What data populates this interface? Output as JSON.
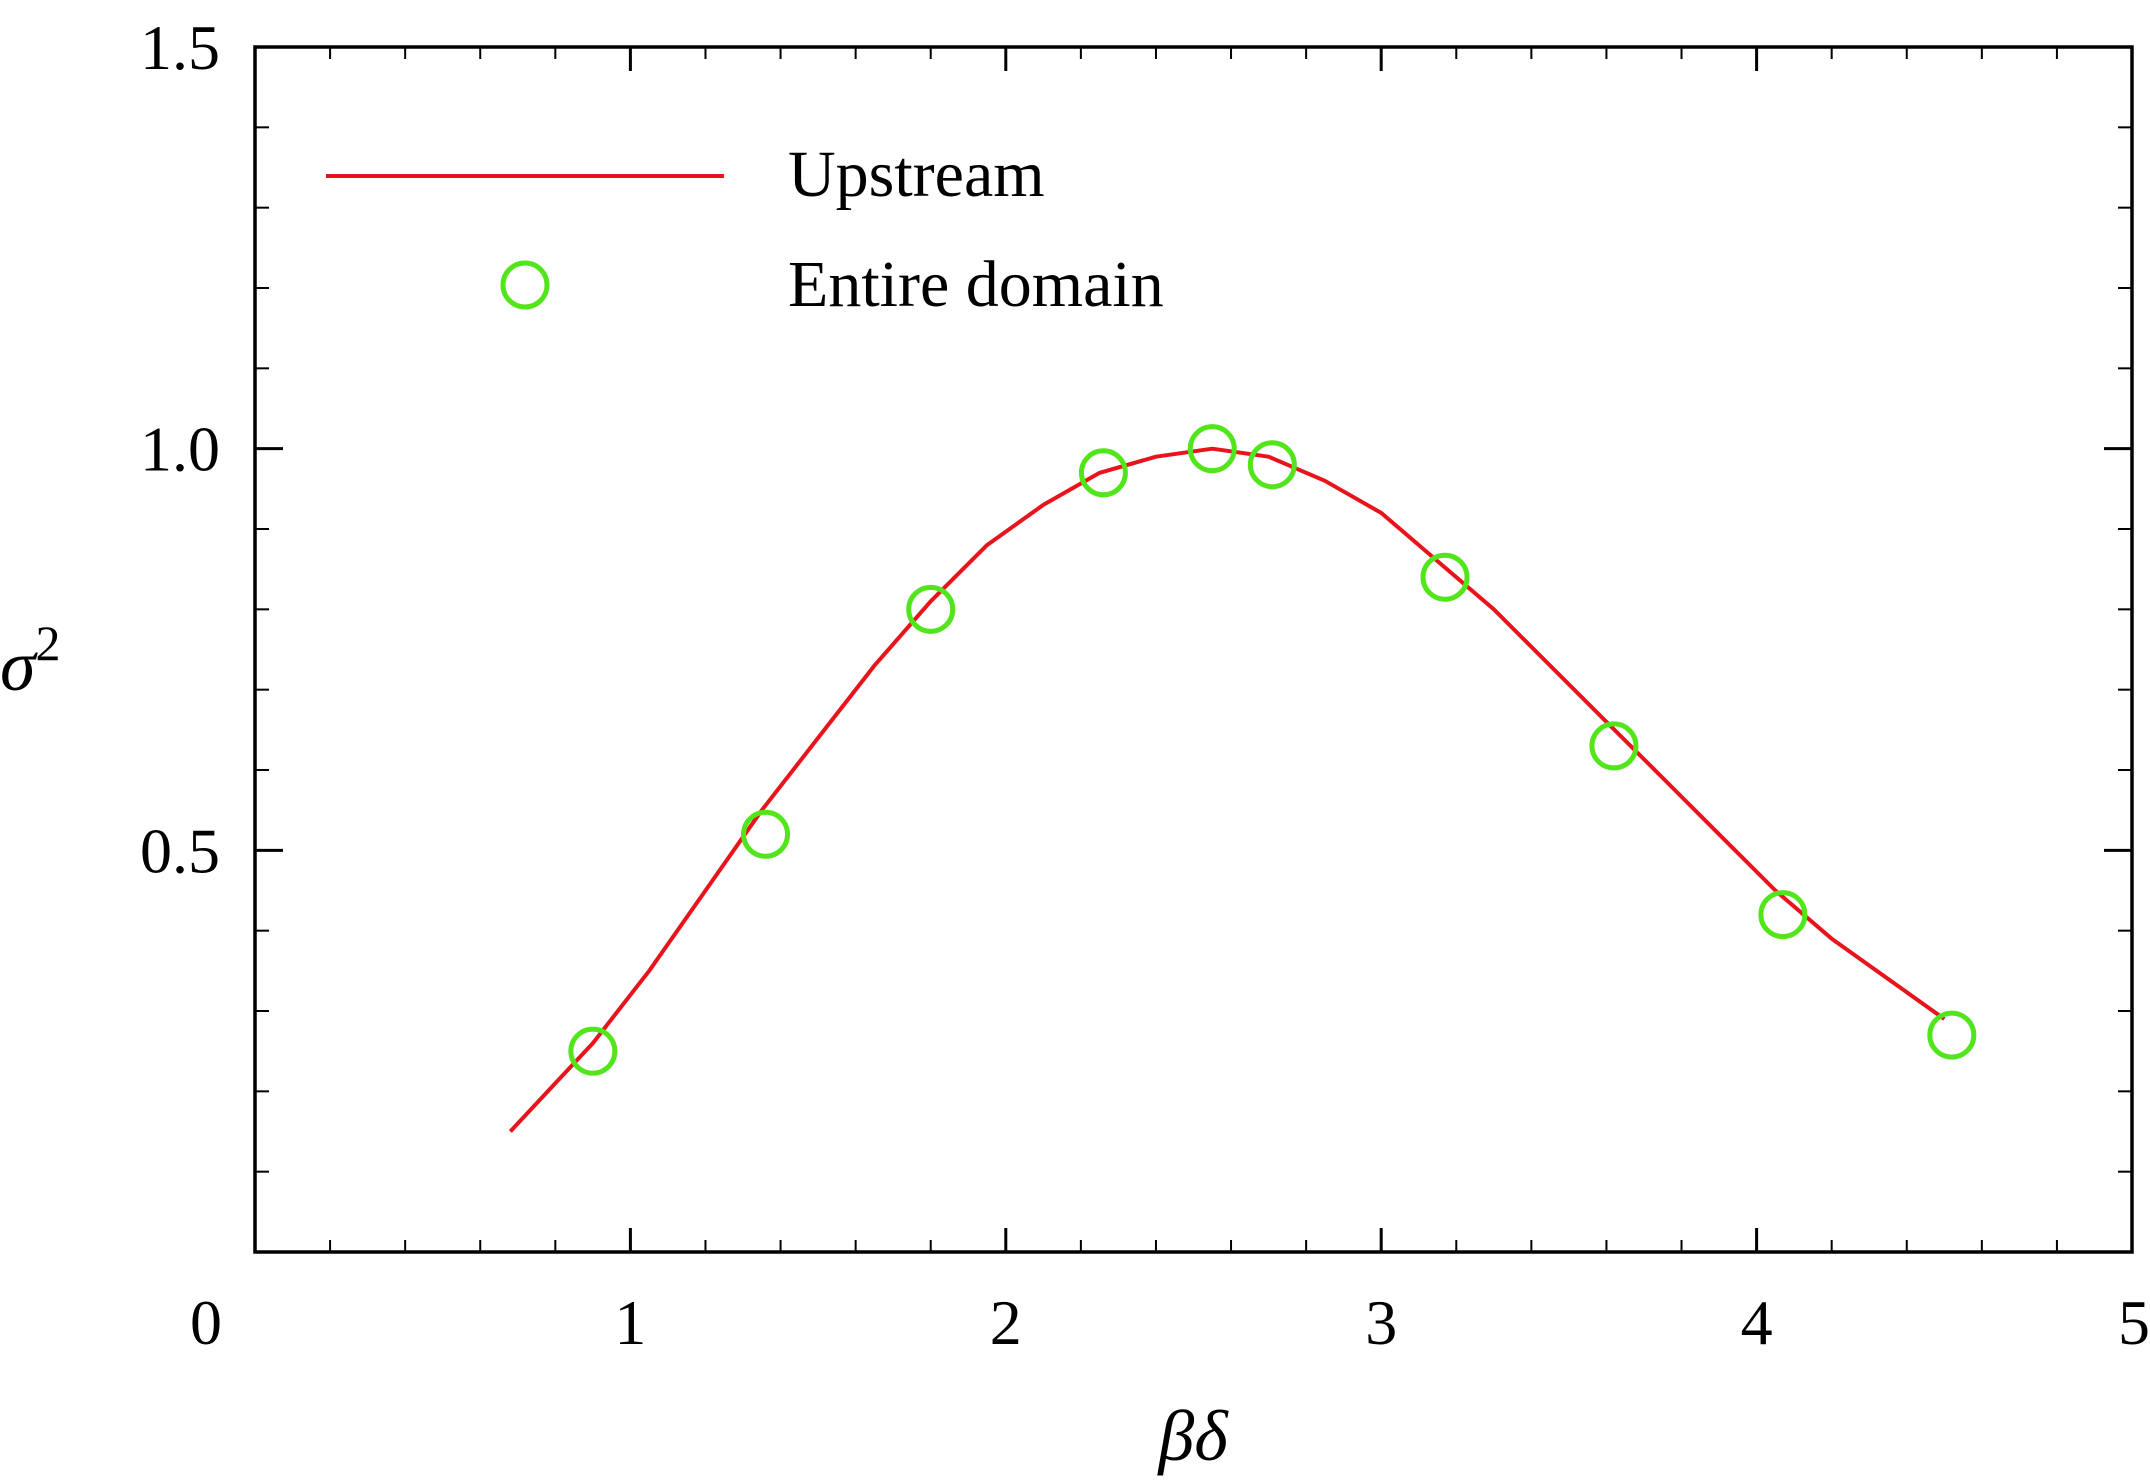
{
  "chart_data": {
    "type": "line",
    "title": "",
    "xlabel": "βδ",
    "ylabel": "σ",
    "ylabel_sup": "2",
    "xlim": [
      0,
      5
    ],
    "ylim": [
      0,
      1.5
    ],
    "x_ticks": [
      {
        "value": 0,
        "label": "0"
      },
      {
        "value": 1,
        "label": "1"
      },
      {
        "value": 2,
        "label": "2"
      },
      {
        "value": 3,
        "label": "3"
      },
      {
        "value": 4,
        "label": "4"
      },
      {
        "value": 5,
        "label": "5"
      }
    ],
    "x_minor_step": 0.2,
    "y_ticks": [
      {
        "value": 0.5,
        "label": "0.5"
      },
      {
        "value": 1.0,
        "label": "1.0"
      },
      {
        "value": 1.5,
        "label": "1.5"
      }
    ],
    "y_minor_step": 0.1,
    "grid": false,
    "legend_position": "top-left",
    "series": [
      {
        "name": "Upstream",
        "kind": "line",
        "color": "#e8141c",
        "x": [
          0.68,
          0.8,
          0.9,
          1.05,
          1.2,
          1.35,
          1.5,
          1.65,
          1.8,
          1.95,
          2.1,
          2.25,
          2.4,
          2.55,
          2.7,
          2.85,
          3.0,
          3.15,
          3.3,
          3.45,
          3.6,
          3.75,
          3.9,
          4.05,
          4.2,
          4.35,
          4.5
        ],
        "y": [
          0.15,
          0.21,
          0.26,
          0.35,
          0.45,
          0.55,
          0.64,
          0.73,
          0.81,
          0.88,
          0.93,
          0.97,
          0.99,
          1.0,
          0.99,
          0.96,
          0.92,
          0.86,
          0.8,
          0.73,
          0.66,
          0.59,
          0.52,
          0.45,
          0.39,
          0.34,
          0.29
        ]
      },
      {
        "name": "Entire domain",
        "kind": "scatter",
        "color": "#52e51b",
        "x": [
          0.9,
          1.36,
          1.8,
          2.26,
          2.55,
          2.71,
          3.17,
          3.62,
          4.07,
          4.52
        ],
        "y": [
          0.25,
          0.52,
          0.8,
          0.97,
          1.0,
          0.98,
          0.84,
          0.63,
          0.42,
          0.27
        ]
      }
    ]
  }
}
